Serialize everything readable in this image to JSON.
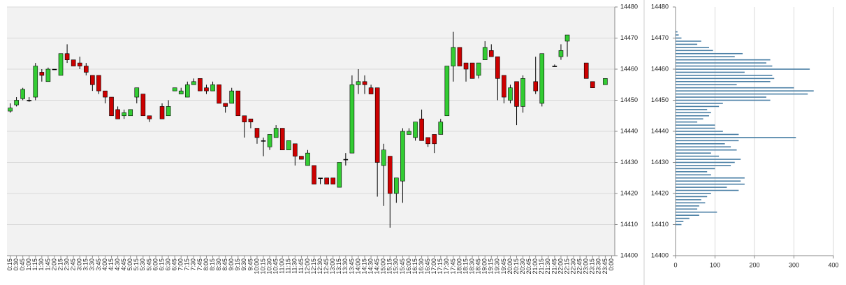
{
  "chart_data": [
    {
      "type": "candlestick",
      "categories": [
        "0:15",
        "0:30",
        "0:45",
        "1:00",
        "1:15",
        "1:30",
        "1:45",
        "2:00",
        "2:15",
        "2:30",
        "2:45",
        "3:00",
        "3:15",
        "3:30",
        "3:45",
        "4:00",
        "4:15",
        "4:30",
        "4:45",
        "5:00",
        "5:15",
        "5:30",
        "5:45",
        "6:00",
        "6:15",
        "6:30",
        "6:45",
        "7:00",
        "7:15",
        "7:30",
        "7:45",
        "8:00",
        "8:15",
        "8:30",
        "8:45",
        "9:00",
        "9:15",
        "9:30",
        "9:45",
        "10:00",
        "10:15",
        "10:30",
        "10:45",
        "11:00",
        "11:15",
        "11:30",
        "11:45",
        "12:00",
        "12:15",
        "12:30",
        "12:45",
        "13:00",
        "13:15",
        "13:30",
        "13:45",
        "14:00",
        "14:15",
        "14:30",
        "14:45",
        "15:00",
        "15:15",
        "15:30",
        "15:45",
        "16:00",
        "16:15",
        "16:30",
        "16:45",
        "17:00",
        "17:15",
        "17:30",
        "17:45",
        "18:00",
        "18:15",
        "18:30",
        "18:45",
        "19:00",
        "19:15",
        "19:30",
        "19:45",
        "20:00",
        "20:15",
        "20:30",
        "20:45",
        "21:00",
        "21:15",
        "21:30",
        "21:45",
        "22:00",
        "22:15",
        "22:30",
        "22:45",
        "23:00",
        "23:15",
        "23:30",
        "23:45",
        "0:00"
      ],
      "open": [
        14446.5,
        14448.5,
        14450.5,
        14450,
        14451,
        14459,
        14456,
        14460,
        14458,
        14465,
        14463,
        14462,
        14461,
        14458,
        14458,
        14453,
        14451,
        14447,
        14445,
        14445,
        14451,
        14452,
        14445,
        null,
        14448,
        14445,
        14453,
        14452,
        14451,
        14455,
        14457,
        14454,
        14453,
        14455,
        14449,
        14449,
        14453,
        14445,
        14444,
        14441,
        14437,
        14435,
        14438,
        14441,
        14434,
        14436,
        14432,
        14429,
        14429,
        14425,
        14425,
        14425,
        14422,
        14431,
        14433,
        14455,
        14456,
        14454,
        14454,
        14429,
        14432,
        14420,
        14424,
        14439,
        14438,
        14444,
        14438,
        14439,
        14439,
        14445,
        14461,
        14467,
        14462,
        14462,
        14458,
        14463,
        14466,
        14464,
        14458,
        14450,
        14456,
        14448,
        null,
        14456,
        14449,
        null,
        14461,
        14464,
        14469,
        null,
        null,
        14462,
        14456,
        null,
        14455,
        null
      ],
      "high": [
        14449,
        14451,
        14454,
        14451,
        14462,
        14460,
        14460.5,
        14460,
        14465,
        14468,
        14463,
        14464,
        14462,
        14458,
        14458,
        14453,
        14451,
        14448,
        14447,
        14447,
        14454,
        14452,
        14445,
        null,
        14449,
        14450,
        14454,
        14454,
        14456,
        14457,
        14457,
        14455,
        14456,
        14455,
        14449,
        14454,
        14453,
        14445,
        14444,
        14441,
        14438,
        14439,
        14442,
        14441,
        14437,
        14436,
        14432,
        14434,
        14429,
        14425,
        14425,
        14425,
        14430,
        14433,
        14458,
        14460,
        14458,
        14455,
        14454,
        14436,
        14432,
        14425,
        14441,
        14441,
        14443,
        14447,
        14438,
        14439,
        14444,
        14461,
        14472,
        14467,
        14462,
        14462,
        14462,
        14469,
        14468,
        14464,
        14458,
        14455,
        14456,
        14458,
        null,
        14464,
        14465,
        null,
        14461.5,
        14468,
        14471,
        null,
        null,
        14462,
        14456,
        null,
        14457,
        null
      ],
      "low": [
        14446,
        14448,
        14450,
        14449.5,
        14450,
        14456,
        14456,
        14460,
        14458,
        14462,
        14461,
        14460,
        14458,
        14453,
        14452,
        14449,
        14445,
        14444,
        14444,
        14445,
        14449,
        14445,
        14443,
        null,
        14444,
        14445,
        14453,
        14452,
        14451,
        14455,
        14453,
        14452,
        14453,
        14449,
        14446,
        14449,
        14445,
        14438,
        14441,
        14436,
        14432,
        14434,
        14438,
        14434,
        14434,
        14429,
        14431,
        14429,
        14423,
        14423,
        14423,
        14423,
        14422,
        14429,
        14433,
        14452,
        14452,
        14452,
        14419,
        14416,
        14409,
        14417,
        14417,
        14439,
        14437,
        14437,
        14435,
        14433,
        14439,
        14445,
        14456,
        14461,
        14456,
        14457,
        14457,
        14463,
        14464,
        14450,
        14449,
        14449,
        14442,
        14446,
        null,
        14452,
        14448,
        null,
        14461,
        14463,
        14464,
        null,
        null,
        14457,
        14454,
        null,
        14455,
        null
      ],
      "close": [
        14447.5,
        14450,
        14453.5,
        14450,
        14461,
        14458,
        14460,
        14460,
        14465,
        14463,
        14461,
        14461,
        14459,
        14455,
        14453,
        14451,
        14445,
        14444,
        14446,
        14447,
        14454,
        14445,
        14444,
        null,
        14444,
        14448,
        14454,
        14453,
        14455,
        14456,
        14453,
        14453,
        14455,
        14449,
        14448,
        14453,
        14445,
        14443,
        14443,
        14438,
        14437,
        14439,
        14441,
        14434,
        14437,
        14432,
        14431,
        14433,
        14423,
        14425,
        14423,
        14423,
        14430,
        14431,
        14455,
        14456,
        14455,
        14452,
        14430,
        14434,
        14420,
        14425,
        14440,
        14440,
        14443,
        14437,
        14436,
        14436,
        14443,
        14461,
        14467,
        14461,
        14460,
        14457,
        14462,
        14467,
        14464,
        14457,
        14451,
        14454,
        14448,
        14457,
        null,
        14453,
        14465,
        null,
        14461,
        14466,
        14471,
        null,
        null,
        14457,
        14454,
        null,
        14457,
        null
      ],
      "up_color": "#33cc33",
      "down_color": "#cc0000",
      "ylim": [
        14400,
        14480
      ],
      "yticks": [
        14400,
        14410,
        14420,
        14430,
        14440,
        14450,
        14460,
        14470,
        14480
      ],
      "grid": true
    },
    {
      "type": "barh",
      "y": [
        14472,
        14471,
        14470,
        14469,
        14468,
        14467,
        14466,
        14465,
        14464,
        14463,
        14462,
        14461,
        14460,
        14459,
        14458,
        14457,
        14456,
        14455,
        14454,
        14453,
        14452,
        14451,
        14450,
        14449,
        14448,
        14447,
        14446,
        14445,
        14444,
        14443,
        14442,
        14441,
        14440,
        14439,
        14438,
        14437,
        14436,
        14435,
        14434,
        14433,
        14432,
        14431,
        14430,
        14429,
        14428,
        14427,
        14426,
        14425,
        14424,
        14423,
        14422,
        14421,
        14420,
        14419,
        14418,
        14417,
        14416,
        14415,
        14414,
        14413,
        14412,
        14411,
        14410
      ],
      "values": [
        5,
        8,
        15,
        65,
        55,
        85,
        95,
        170,
        150,
        240,
        230,
        245,
        340,
        175,
        245,
        250,
        240,
        155,
        300,
        350,
        335,
        230,
        240,
        120,
        110,
        80,
        90,
        85,
        70,
        55,
        100,
        100,
        120,
        160,
        305,
        160,
        125,
        140,
        155,
        90,
        110,
        165,
        150,
        140,
        100,
        80,
        90,
        175,
        165,
        175,
        130,
        160,
        90,
        80,
        65,
        75,
        60,
        55,
        105,
        60,
        35,
        20,
        15
      ],
      "color": "#4a7fa5",
      "xlim": [
        0,
        400
      ],
      "xticks": [
        0,
        100,
        200,
        300,
        400
      ],
      "ylim": [
        14400,
        14480
      ],
      "yticks": [
        14400,
        14410,
        14420,
        14430,
        14440,
        14450,
        14460,
        14470,
        14480
      ],
      "grid": true
    }
  ]
}
